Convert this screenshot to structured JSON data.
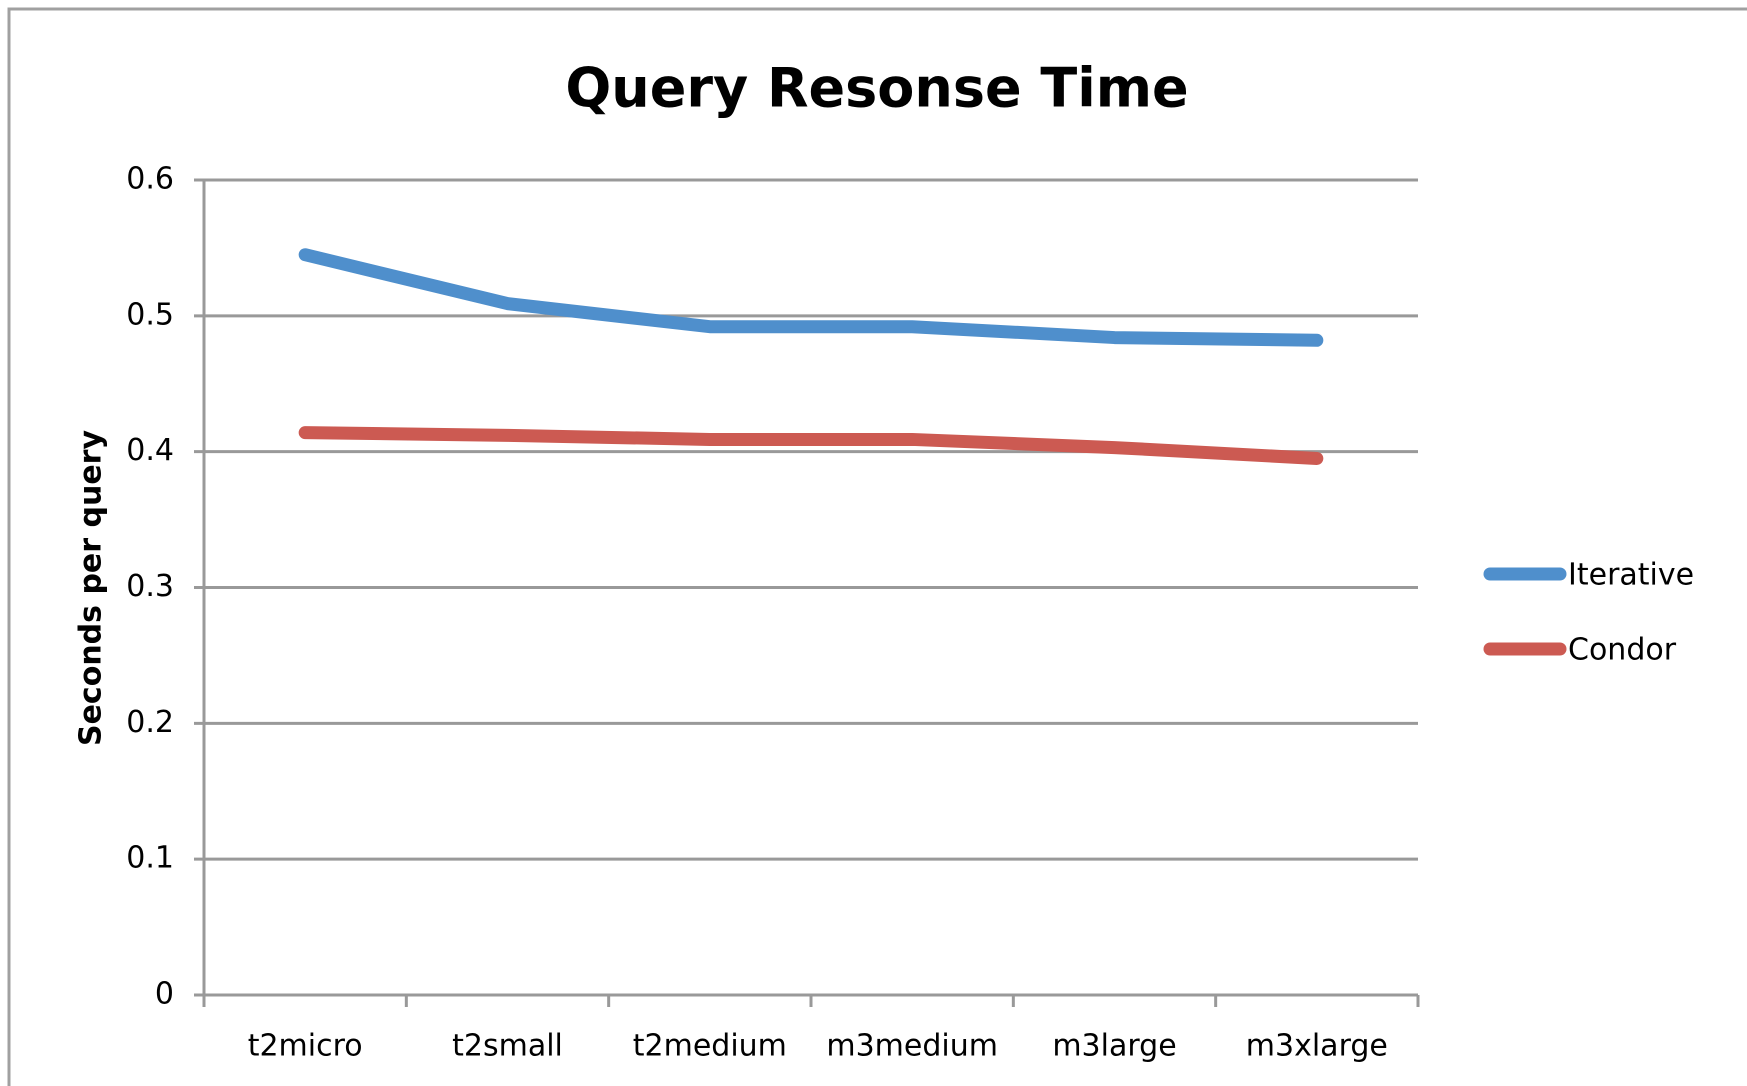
{
  "chart_data": {
    "type": "line",
    "title": "Query Resonse Time",
    "y_label": "Seconds per query",
    "categories": [
      "t2micro",
      "t2small",
      "t2medium",
      "m3medium",
      "m3large",
      "m3xlarge"
    ],
    "series": [
      {
        "name": "Iterative",
        "color": "#4f8fcc",
        "values": [
          0.545,
          0.509,
          0.492,
          0.492,
          0.484,
          0.482
        ]
      },
      {
        "name": "Condor",
        "color": "#cc5a52",
        "values": [
          0.414,
          0.412,
          0.409,
          0.409,
          0.403,
          0.395
        ]
      }
    ],
    "ylim": [
      0,
      0.6
    ],
    "yticks": [
      0,
      0.1,
      0.2,
      0.3,
      0.4,
      0.5,
      0.6
    ],
    "grid": true,
    "legend": "right"
  }
}
